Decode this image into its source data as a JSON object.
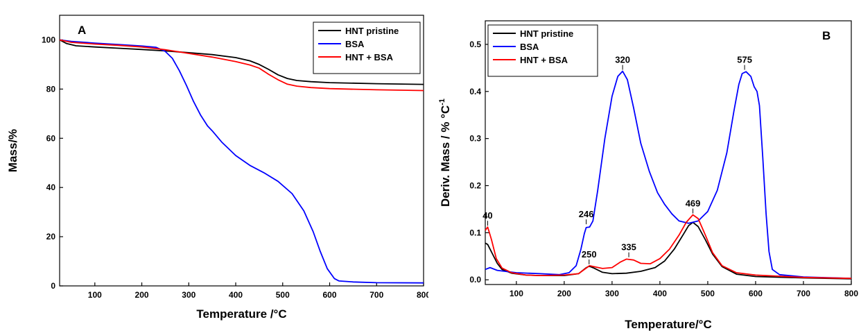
{
  "chart_data": [
    {
      "type": "line",
      "panel": "A",
      "xlabel": "Temperature /°C",
      "ylabel": "Mass/%",
      "xlim": [
        25,
        800
      ],
      "ylim": [
        0,
        110
      ],
      "xticks": [
        100,
        200,
        300,
        400,
        500,
        600,
        700,
        800
      ],
      "yticks": [
        0,
        20,
        40,
        60,
        80,
        100
      ],
      "legend_position": "top-right",
      "grid": false,
      "series": [
        {
          "name": "HNT pristine",
          "color": "#000000",
          "points": [
            [
              25,
              100
            ],
            [
              40,
              98.5
            ],
            [
              60,
              97.6
            ],
            [
              100,
              97.1
            ],
            [
              150,
              96.6
            ],
            [
              200,
              96.1
            ],
            [
              250,
              95.5
            ],
            [
              300,
              94.8
            ],
            [
              350,
              94.0
            ],
            [
              400,
              92.8
            ],
            [
              430,
              91.5
            ],
            [
              450,
              90.0
            ],
            [
              470,
              88.0
            ],
            [
              490,
              85.8
            ],
            [
              510,
              84.3
            ],
            [
              530,
              83.5
            ],
            [
              560,
              83.0
            ],
            [
              600,
              82.6
            ],
            [
              700,
              82.2
            ],
            [
              800,
              81.9
            ]
          ]
        },
        {
          "name": "BSA",
          "color": "#0000ff",
          "points": [
            [
              25,
              100
            ],
            [
              50,
              99.4
            ],
            [
              100,
              98.7
            ],
            [
              150,
              98.1
            ],
            [
              200,
              97.5
            ],
            [
              230,
              97.0
            ],
            [
              250,
              95.3
            ],
            [
              265,
              92.5
            ],
            [
              280,
              87.5
            ],
            [
              295,
              81.5
            ],
            [
              310,
              75.0
            ],
            [
              325,
              69.5
            ],
            [
              340,
              65.0
            ],
            [
              350,
              63.0
            ],
            [
              370,
              58.5
            ],
            [
              400,
              53.0
            ],
            [
              430,
              49.0
            ],
            [
              460,
              46.0
            ],
            [
              490,
              42.5
            ],
            [
              520,
              37.5
            ],
            [
              545,
              30.5
            ],
            [
              565,
              22.0
            ],
            [
              580,
              14.0
            ],
            [
              595,
              7.0
            ],
            [
              610,
              3.0
            ],
            [
              620,
              2.0
            ],
            [
              650,
              1.6
            ],
            [
              700,
              1.3
            ],
            [
              800,
              1.2
            ]
          ]
        },
        {
          "name": "HNT + BSA",
          "color": "#ff0000",
          "points": [
            [
              25,
              100
            ],
            [
              50,
              99.0
            ],
            [
              100,
              98.3
            ],
            [
              150,
              97.8
            ],
            [
              200,
              97.1
            ],
            [
              250,
              96.0
            ],
            [
              300,
              94.5
            ],
            [
              350,
              93.0
            ],
            [
              400,
              91.2
            ],
            [
              430,
              89.8
            ],
            [
              450,
              88.5
            ],
            [
              470,
              86.0
            ],
            [
              490,
              83.8
            ],
            [
              510,
              82.0
            ],
            [
              530,
              81.2
            ],
            [
              560,
              80.6
            ],
            [
              600,
              80.2
            ],
            [
              700,
              79.7
            ],
            [
              800,
              79.4
            ]
          ]
        }
      ]
    },
    {
      "type": "line",
      "panel": "B",
      "xlabel": "Temperature/°C",
      "ylabel": "Deriv. Mass / % °C",
      "ylabel_sup": "-1",
      "xlim": [
        35,
        800
      ],
      "ylim": [
        -0.01,
        0.55
      ],
      "xticks": [
        100,
        200,
        300,
        400,
        500,
        600,
        700,
        800
      ],
      "yticks": [
        0.0,
        0.1,
        0.2,
        0.3,
        0.4,
        0.5
      ],
      "legend_position": "top-left",
      "grid": false,
      "annotations": [
        {
          "label": "40",
          "x": 40,
          "y": 0.112
        },
        {
          "label": "246",
          "x": 246,
          "y": 0.115
        },
        {
          "label": "250",
          "x": 252,
          "y": 0.03
        },
        {
          "label": "320",
          "x": 322,
          "y": 0.443
        },
        {
          "label": "335",
          "x": 335,
          "y": 0.045
        },
        {
          "label": "469",
          "x": 469,
          "y": 0.138
        },
        {
          "label": "575",
          "x": 577,
          "y": 0.443
        }
      ],
      "series": [
        {
          "name": "HNT pristine",
          "color": "#000000",
          "points": [
            [
              35,
              0.078
            ],
            [
              40,
              0.075
            ],
            [
              50,
              0.055
            ],
            [
              60,
              0.035
            ],
            [
              70,
              0.022
            ],
            [
              90,
              0.014
            ],
            [
              120,
              0.01
            ],
            [
              150,
              0.009
            ],
            [
              200,
              0.009
            ],
            [
              230,
              0.013
            ],
            [
              245,
              0.025
            ],
            [
              252,
              0.029
            ],
            [
              262,
              0.025
            ],
            [
              280,
              0.016
            ],
            [
              300,
              0.013
            ],
            [
              330,
              0.014
            ],
            [
              360,
              0.018
            ],
            [
              390,
              0.026
            ],
            [
              410,
              0.04
            ],
            [
              430,
              0.065
            ],
            [
              450,
              0.098
            ],
            [
              460,
              0.115
            ],
            [
              469,
              0.122
            ],
            [
              480,
              0.113
            ],
            [
              495,
              0.085
            ],
            [
              510,
              0.055
            ],
            [
              530,
              0.028
            ],
            [
              560,
              0.012
            ],
            [
              600,
              0.007
            ],
            [
              700,
              0.004
            ],
            [
              800,
              0.002
            ]
          ]
        },
        {
          "name": "BSA",
          "color": "#0000ff",
          "points": [
            [
              35,
              0.022
            ],
            [
              45,
              0.026
            ],
            [
              60,
              0.02
            ],
            [
              100,
              0.015
            ],
            [
              150,
              0.013
            ],
            [
              190,
              0.011
            ],
            [
              210,
              0.015
            ],
            [
              225,
              0.03
            ],
            [
              235,
              0.065
            ],
            [
              242,
              0.098
            ],
            [
              246,
              0.111
            ],
            [
              253,
              0.112
            ],
            [
              260,
              0.125
            ],
            [
              270,
              0.19
            ],
            [
              285,
              0.3
            ],
            [
              300,
              0.39
            ],
            [
              312,
              0.432
            ],
            [
              322,
              0.443
            ],
            [
              332,
              0.425
            ],
            [
              345,
              0.365
            ],
            [
              360,
              0.29
            ],
            [
              378,
              0.23
            ],
            [
              395,
              0.185
            ],
            [
              410,
              0.16
            ],
            [
              425,
              0.14
            ],
            [
              440,
              0.125
            ],
            [
              460,
              0.12
            ],
            [
              480,
              0.125
            ],
            [
              500,
              0.145
            ],
            [
              520,
              0.19
            ],
            [
              540,
              0.27
            ],
            [
              555,
              0.36
            ],
            [
              565,
              0.415
            ],
            [
              572,
              0.438
            ],
            [
              580,
              0.442
            ],
            [
              590,
              0.432
            ],
            [
              597,
              0.41
            ],
            [
              603,
              0.4
            ],
            [
              608,
              0.37
            ],
            [
              615,
              0.26
            ],
            [
              622,
              0.14
            ],
            [
              628,
              0.06
            ],
            [
              635,
              0.022
            ],
            [
              650,
              0.011
            ],
            [
              700,
              0.006
            ],
            [
              800,
              0.003
            ]
          ]
        },
        {
          "name": "HNT + BSA",
          "color": "#ff0000",
          "points": [
            [
              35,
              0.105
            ],
            [
              40,
              0.112
            ],
            [
              48,
              0.085
            ],
            [
              58,
              0.045
            ],
            [
              70,
              0.025
            ],
            [
              90,
              0.015
            ],
            [
              120,
              0.01
            ],
            [
              150,
              0.009
            ],
            [
              200,
              0.01
            ],
            [
              230,
              0.013
            ],
            [
              245,
              0.024
            ],
            [
              253,
              0.03
            ],
            [
              262,
              0.028
            ],
            [
              280,
              0.024
            ],
            [
              300,
              0.026
            ],
            [
              318,
              0.038
            ],
            [
              330,
              0.044
            ],
            [
              345,
              0.042
            ],
            [
              360,
              0.035
            ],
            [
              380,
              0.034
            ],
            [
              400,
              0.045
            ],
            [
              420,
              0.065
            ],
            [
              440,
              0.095
            ],
            [
              455,
              0.122
            ],
            [
              469,
              0.138
            ],
            [
              480,
              0.13
            ],
            [
              495,
              0.095
            ],
            [
              510,
              0.058
            ],
            [
              530,
              0.03
            ],
            [
              560,
              0.015
            ],
            [
              600,
              0.01
            ],
            [
              700,
              0.005
            ],
            [
              800,
              0.003
            ]
          ]
        }
      ]
    }
  ],
  "panel_letters": {
    "a": "A",
    "b": "B"
  }
}
